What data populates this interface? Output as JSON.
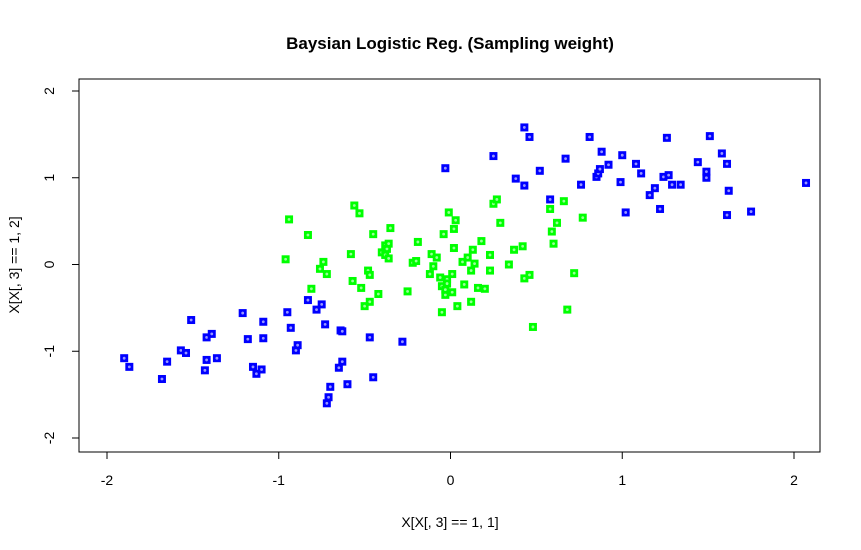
{
  "chart_data": {
    "type": "scatter",
    "title": "Baysian Logistic Reg. (Sampling weight)",
    "xlabel": "X[X[, 3] == 1, 1]",
    "ylabel": "X[X[, 3] == 1, 2]",
    "xlim": [
      -2.1,
      2.15
    ],
    "ylim": [
      -2.15,
      2.15
    ],
    "xticks": [
      -2,
      -1,
      0,
      1,
      2
    ],
    "yticks": [
      -2,
      -1,
      0,
      1,
      2
    ],
    "xtick_labels": [
      "-2",
      "-1",
      "0",
      "1",
      "2"
    ],
    "ytick_labels": [
      "-2",
      "-1",
      "0",
      "1",
      "2"
    ],
    "grid": false,
    "series": [
      {
        "color": "#0000ff",
        "marker": "square",
        "points": [
          [
            -1.9,
            -1.08
          ],
          [
            -1.87,
            -1.18
          ],
          [
            -1.68,
            -1.32
          ],
          [
            -1.65,
            -1.12
          ],
          [
            -1.57,
            -0.99
          ],
          [
            -1.54,
            -1.02
          ],
          [
            -1.51,
            -0.64
          ],
          [
            -1.43,
            -1.22
          ],
          [
            -1.42,
            -0.84
          ],
          [
            -1.42,
            -1.1
          ],
          [
            -1.39,
            -0.8
          ],
          [
            -1.36,
            -1.08
          ],
          [
            -1.21,
            -0.56
          ],
          [
            -1.18,
            -0.86
          ],
          [
            -1.15,
            -1.18
          ],
          [
            -1.13,
            -1.26
          ],
          [
            -1.1,
            -1.21
          ],
          [
            -1.09,
            -0.85
          ],
          [
            -1.09,
            -0.66
          ],
          [
            -0.95,
            -0.55
          ],
          [
            -0.93,
            -0.73
          ],
          [
            -0.9,
            -0.99
          ],
          [
            -0.89,
            -0.93
          ],
          [
            -0.83,
            -0.41
          ],
          [
            -0.78,
            -0.52
          ],
          [
            -0.75,
            -0.46
          ],
          [
            -0.73,
            -0.69
          ],
          [
            -0.72,
            -1.6
          ],
          [
            -0.71,
            -1.53
          ],
          [
            -0.7,
            -1.41
          ],
          [
            -0.65,
            -1.19
          ],
          [
            -0.64,
            -0.76
          ],
          [
            -0.63,
            -0.77
          ],
          [
            -0.63,
            -1.12
          ],
          [
            -0.6,
            -1.38
          ],
          [
            -0.47,
            -0.84
          ],
          [
            -0.45,
            -1.3
          ],
          [
            -0.28,
            -0.89
          ],
          [
            -0.03,
            1.11
          ],
          [
            0.25,
            1.25
          ],
          [
            0.38,
            0.99
          ],
          [
            0.43,
            0.91
          ],
          [
            0.43,
            1.58
          ],
          [
            0.46,
            1.47
          ],
          [
            0.52,
            1.08
          ],
          [
            0.58,
            0.75
          ],
          [
            0.67,
            1.22
          ],
          [
            0.76,
            0.92
          ],
          [
            0.81,
            1.47
          ],
          [
            0.85,
            1.01
          ],
          [
            0.86,
            1.05
          ],
          [
            0.87,
            1.1
          ],
          [
            0.88,
            1.3
          ],
          [
            0.92,
            1.15
          ],
          [
            0.99,
            0.95
          ],
          [
            1.0,
            1.26
          ],
          [
            1.02,
            0.6
          ],
          [
            1.08,
            1.16
          ],
          [
            1.11,
            1.05
          ],
          [
            1.16,
            0.8
          ],
          [
            1.19,
            0.88
          ],
          [
            1.22,
            0.64
          ],
          [
            1.24,
            1.01
          ],
          [
            1.26,
            1.46
          ],
          [
            1.27,
            1.03
          ],
          [
            1.29,
            0.92
          ],
          [
            1.34,
            0.92
          ],
          [
            1.44,
            1.18
          ],
          [
            1.49,
            1.07
          ],
          [
            1.49,
            1.0
          ],
          [
            1.51,
            1.48
          ],
          [
            1.58,
            1.28
          ],
          [
            1.61,
            1.16
          ],
          [
            1.62,
            0.85
          ],
          [
            1.61,
            0.57
          ],
          [
            1.75,
            0.61
          ],
          [
            2.07,
            0.94
          ]
        ]
      },
      {
        "color": "#00ff00",
        "marker": "square",
        "points": [
          [
            -0.96,
            0.06
          ],
          [
            -0.94,
            0.52
          ],
          [
            -0.83,
            0.34
          ],
          [
            -0.81,
            -0.28
          ],
          [
            -0.76,
            -0.05
          ],
          [
            -0.74,
            0.03
          ],
          [
            -0.72,
            -0.11
          ],
          [
            -0.58,
            0.12
          ],
          [
            -0.57,
            -0.19
          ],
          [
            -0.56,
            0.68
          ],
          [
            -0.53,
            0.59
          ],
          [
            -0.52,
            -0.27
          ],
          [
            -0.5,
            -0.48
          ],
          [
            -0.48,
            -0.07
          ],
          [
            -0.47,
            -0.12
          ],
          [
            -0.47,
            -0.43
          ],
          [
            -0.45,
            0.35
          ],
          [
            -0.42,
            -0.34
          ],
          [
            -0.4,
            0.14
          ],
          [
            -0.38,
            0.11
          ],
          [
            -0.38,
            0.22
          ],
          [
            -0.37,
            0.18
          ],
          [
            -0.36,
            0.24
          ],
          [
            -0.36,
            0.07
          ],
          [
            -0.35,
            0.42
          ],
          [
            -0.25,
            -0.31
          ],
          [
            -0.22,
            0.02
          ],
          [
            -0.2,
            0.04
          ],
          [
            -0.19,
            0.26
          ],
          [
            -0.12,
            -0.11
          ],
          [
            -0.11,
            0.12
          ],
          [
            -0.1,
            -0.02
          ],
          [
            -0.08,
            0.08
          ],
          [
            -0.06,
            -0.15
          ],
          [
            -0.05,
            -0.55
          ],
          [
            -0.05,
            -0.25
          ],
          [
            -0.04,
            0.35
          ],
          [
            -0.03,
            -0.35
          ],
          [
            -0.03,
            -0.29
          ],
          [
            -0.02,
            -0.17
          ],
          [
            -0.02,
            -0.22
          ],
          [
            -0.01,
            0.6
          ],
          [
            0.01,
            -0.32
          ],
          [
            0.01,
            -0.11
          ],
          [
            0.02,
            0.19
          ],
          [
            0.02,
            0.41
          ],
          [
            0.03,
            0.51
          ],
          [
            0.04,
            -0.48
          ],
          [
            0.07,
            0.03
          ],
          [
            0.08,
            -0.23
          ],
          [
            0.1,
            0.08
          ],
          [
            0.12,
            -0.07
          ],
          [
            0.12,
            -0.43
          ],
          [
            0.13,
            0.17
          ],
          [
            0.14,
            0.01
          ],
          [
            0.16,
            -0.27
          ],
          [
            0.18,
            0.27
          ],
          [
            0.2,
            -0.28
          ],
          [
            0.23,
            0.11
          ],
          [
            0.23,
            -0.07
          ],
          [
            0.25,
            0.7
          ],
          [
            0.27,
            0.75
          ],
          [
            0.29,
            0.48
          ],
          [
            0.34,
            0.0
          ],
          [
            0.37,
            0.17
          ],
          [
            0.42,
            0.21
          ],
          [
            0.43,
            -0.16
          ],
          [
            0.46,
            -0.12
          ],
          [
            0.48,
            -0.72
          ],
          [
            0.58,
            0.64
          ],
          [
            0.59,
            0.38
          ],
          [
            0.6,
            0.24
          ],
          [
            0.62,
            0.48
          ],
          [
            0.66,
            0.73
          ],
          [
            0.68,
            -0.52
          ],
          [
            0.72,
            -0.1
          ],
          [
            0.77,
            0.54
          ]
        ]
      }
    ]
  }
}
